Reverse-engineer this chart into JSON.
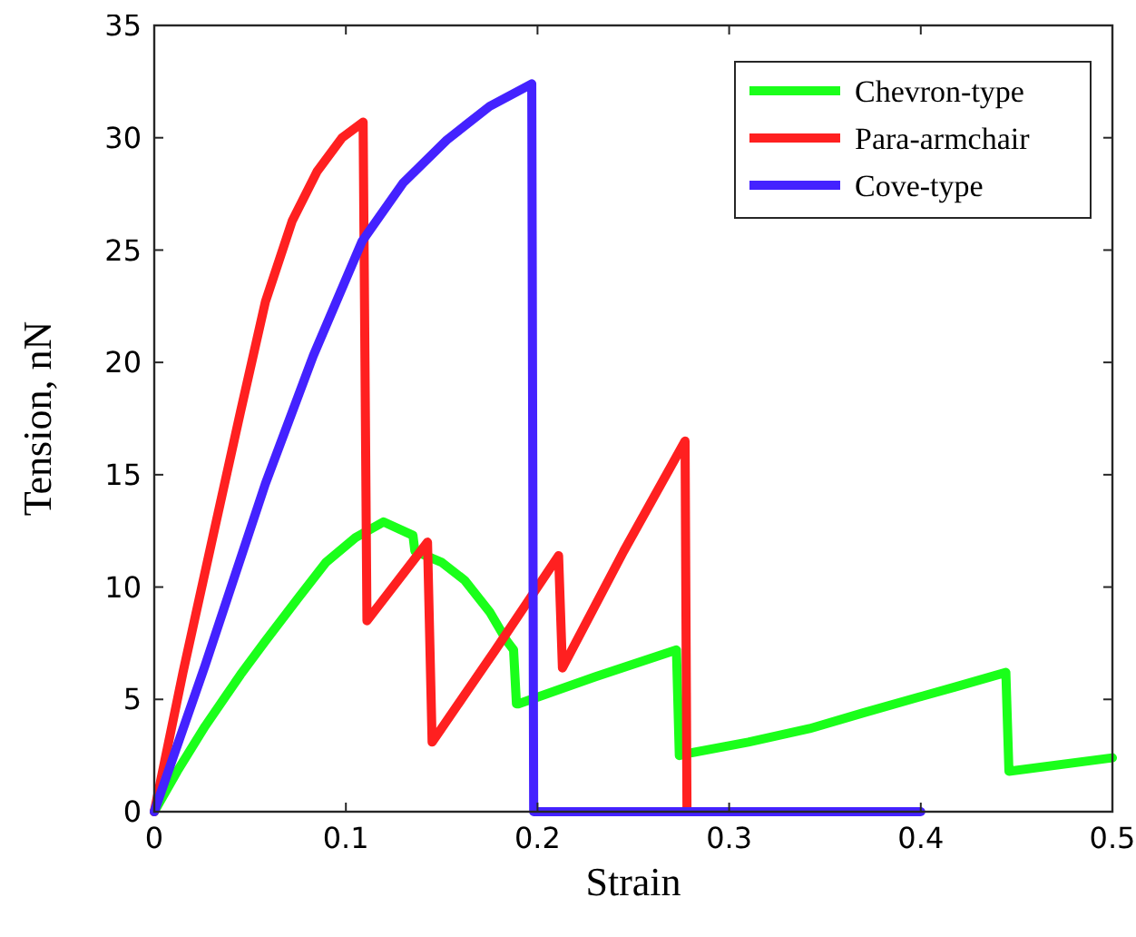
{
  "chart_data": {
    "type": "line",
    "xlabel": "Strain",
    "ylabel": "Tension, nN",
    "xlim": [
      0,
      0.5
    ],
    "ylim": [
      0,
      35
    ],
    "xticks": [
      0,
      0.1,
      0.2,
      0.3,
      0.4,
      0.5
    ],
    "yticks": [
      0,
      5,
      10,
      15,
      20,
      25,
      30,
      35
    ],
    "grid": false,
    "legend": "top right",
    "marker": "none",
    "line_style": "solid",
    "series": [
      {
        "name": "Chevron-type",
        "color": "#1aff1a",
        "x": [
          0,
          0.012,
          0.0265,
          0.045,
          0.058,
          0.075,
          0.0896,
          0.105,
          0.1196,
          0.135,
          0.136,
          0.15,
          0.162,
          0.175,
          0.184,
          0.1875,
          0.189,
          0.19,
          0.23,
          0.2725,
          0.274,
          0.279,
          0.31,
          0.342,
          0.37,
          0.399,
          0.42,
          0.4444,
          0.446,
          0.5
        ],
        "values": [
          0,
          1.8,
          3.8,
          6.1,
          7.6,
          9.5,
          11.1,
          12.2,
          12.9,
          12.3,
          11.6,
          11.1,
          10.3,
          8.9,
          7.6,
          7.2,
          4.8,
          4.8,
          6,
          7.2,
          2.5,
          2.6,
          3.1,
          3.7,
          4.4,
          5.1,
          5.6,
          6.2,
          1.8,
          2.4
        ]
      },
      {
        "name": "Para-armchair",
        "color": "#ff2020",
        "x": [
          0,
          0.015,
          0.0297,
          0.045,
          0.058,
          0.072,
          0.085,
          0.098,
          0.109,
          0.111,
          0.1426,
          0.145,
          0.178,
          0.211,
          0.213,
          0.245,
          0.277,
          0.278
        ],
        "values": [
          0,
          6.2,
          11.9,
          17.8,
          22.7,
          26.3,
          28.5,
          30,
          30.7,
          8.5,
          12,
          3.1,
          7.2,
          11.4,
          6.4,
          11.6,
          16.5,
          0
        ]
      },
      {
        "name": "Cove-type",
        "color": "#4422ff",
        "x": [
          0,
          0.0265,
          0.058,
          0.083,
          0.1085,
          0.13,
          0.1527,
          0.175,
          0.197,
          0.198,
          0.4
        ],
        "values": [
          0,
          6.5,
          14.6,
          20.3,
          25.4,
          28,
          29.9,
          31.4,
          32.4,
          0,
          0
        ]
      }
    ]
  }
}
